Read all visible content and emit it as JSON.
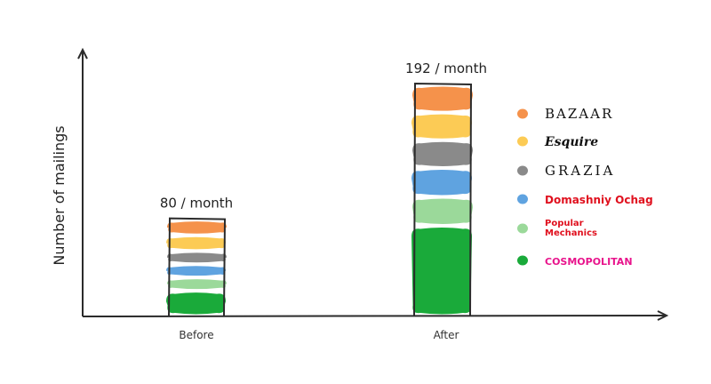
{
  "chart_data": {
    "type": "bar",
    "stacked": true,
    "categories": [
      "Before",
      "After"
    ],
    "ylabel": "Number of mailings",
    "xlabel": "",
    "totals": [
      "80 / month",
      "192 / month"
    ],
    "ylim": [
      0,
      220
    ],
    "grid": false,
    "legend_position": "right",
    "series": [
      {
        "name": "COSMOPOLITAN",
        "color": "#1aaa3a",
        "values": [
          21,
          75
        ]
      },
      {
        "name": "Popular Mechanics",
        "color": "#9bd99a",
        "values": [
          11,
          24
        ]
      },
      {
        "name": "Domashniy Ochag",
        "color": "#5fa3e0",
        "values": [
          11,
          24
        ]
      },
      {
        "name": "GRAZIA",
        "color": "#8a8a8a",
        "values": [
          11,
          23
        ]
      },
      {
        "name": "Esquire",
        "color": "#fccb55",
        "values": [
          13,
          23
        ]
      },
      {
        "name": "BAZAAR",
        "color": "#f5924b",
        "values": [
          13,
          23
        ]
      }
    ]
  }
}
